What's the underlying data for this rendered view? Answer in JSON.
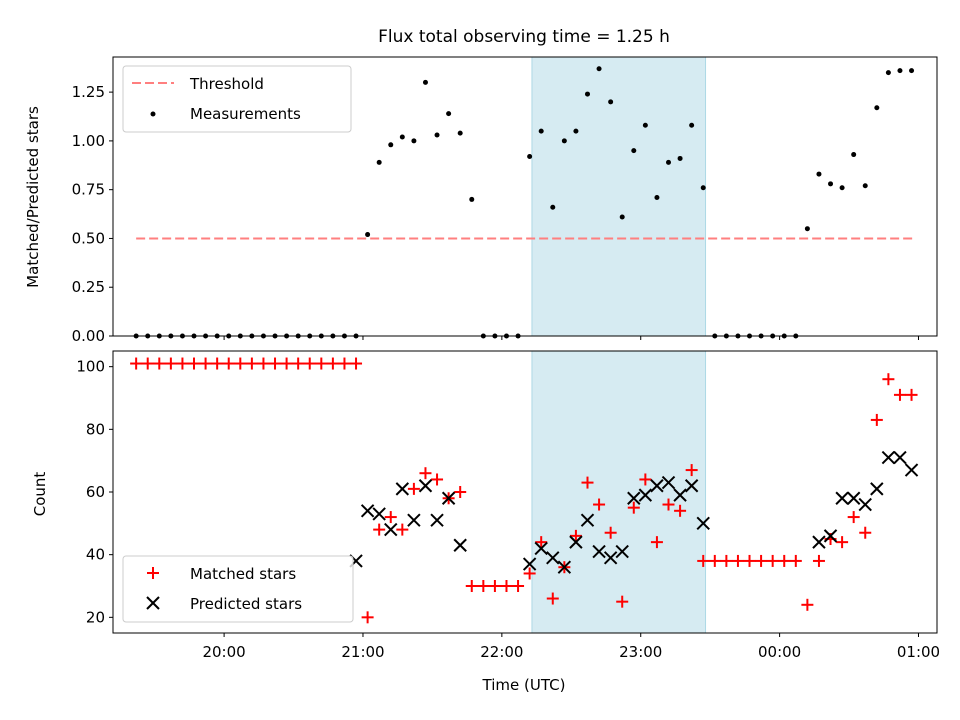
{
  "title": "Flux total observing time = 1.25 h",
  "colors": {
    "threshold": "#ff7f7f",
    "measurement": "#000000",
    "matched": "#ff0000",
    "predicted": "#000000",
    "shade_fill": "#add8e6"
  },
  "chart_data": [
    {
      "type": "scatter",
      "ylabel": "Matched/Predicted stars",
      "xlim": [
        "19:12",
        "01:08"
      ],
      "ylim": [
        0,
        1.43
      ],
      "yticks": [
        "0.00",
        "0.25",
        "0.50",
        "0.75",
        "1.00",
        "1.25"
      ],
      "shaded_interval": {
        "start": "22:13",
        "end": "23:28"
      },
      "legend": {
        "position": "upper-left",
        "entries": [
          "Threshold",
          "Measurements"
        ]
      },
      "threshold": {
        "name": "Threshold",
        "y": 0.5,
        "x_range": [
          "19:22",
          "00:58"
        ]
      },
      "measurements": {
        "name": "Measurements",
        "x": [
          "19:22",
          "19:27",
          "19:32",
          "19:37",
          "19:42",
          "19:47",
          "19:52",
          "19:57",
          "20:02",
          "20:07",
          "20:12",
          "20:17",
          "20:22",
          "20:27",
          "20:32",
          "20:37",
          "20:42",
          "20:47",
          "20:52",
          "20:57",
          "21:02",
          "21:07",
          "21:12",
          "21:17",
          "21:22",
          "21:27",
          "21:32",
          "21:37",
          "21:42",
          "21:47",
          "21:52",
          "21:57",
          "22:02",
          "22:07",
          "22:12",
          "22:17",
          "22:22",
          "22:27",
          "22:32",
          "22:37",
          "22:42",
          "22:47",
          "22:52",
          "22:57",
          "23:02",
          "23:07",
          "23:12",
          "23:17",
          "23:22",
          "23:27",
          "23:32",
          "23:37",
          "23:42",
          "23:47",
          "23:52",
          "23:57",
          "00:02",
          "00:07",
          "00:12",
          "00:17",
          "00:22",
          "00:27",
          "00:32",
          "00:37",
          "00:42",
          "00:47",
          "00:52",
          "00:57"
        ],
        "y": [
          0,
          0,
          0,
          0,
          0,
          0,
          0,
          0,
          0,
          0,
          0,
          0,
          0,
          0,
          0,
          0,
          0,
          0,
          0,
          0,
          0.52,
          0.89,
          0.98,
          1.02,
          1.0,
          1.3,
          1.03,
          1.14,
          1.04,
          0.7,
          0,
          0,
          0,
          0,
          0.92,
          1.05,
          0.66,
          1.0,
          1.05,
          1.24,
          1.37,
          1.2,
          0.61,
          0.95,
          1.08,
          0.71,
          0.89,
          0.91,
          1.08,
          0.76,
          0,
          0,
          0,
          0,
          0,
          0,
          0,
          0,
          0.55,
          0.83,
          0.78,
          0.76,
          0.93,
          0.77,
          1.17,
          1.35,
          1.36,
          1.36
        ],
        "missing_note": ""
      }
    },
    {
      "type": "scatter",
      "xlabel": "Time (UTC)",
      "ylabel": "Count",
      "xlim": [
        "19:12",
        "01:08"
      ],
      "ylim": [
        15,
        105
      ],
      "xticks": [
        "20:00",
        "21:00",
        "22:00",
        "23:00",
        "00:00",
        "01:00"
      ],
      "yticks": [
        "20",
        "40",
        "60",
        "80",
        "100"
      ],
      "shaded_interval": {
        "start": "22:13",
        "end": "23:28"
      },
      "legend": {
        "position": "lower-left",
        "entries": [
          "Matched stars",
          "Predicted stars"
        ]
      },
      "series": [
        {
          "name": "Matched stars",
          "marker": "plus",
          "x": [
            "19:22",
            "19:27",
            "19:32",
            "19:37",
            "19:42",
            "19:47",
            "19:52",
            "19:57",
            "20:02",
            "20:07",
            "20:12",
            "20:17",
            "20:22",
            "20:27",
            "20:32",
            "20:37",
            "20:42",
            "20:47",
            "20:52",
            "20:57",
            "21:02",
            "21:07",
            "21:12",
            "21:17",
            "21:22",
            "21:27",
            "21:32",
            "21:37",
            "21:42",
            "21:47",
            "21:52",
            "21:57",
            "22:02",
            "22:07",
            "22:12",
            "22:17",
            "22:22",
            "22:27",
            "22:32",
            "22:37",
            "22:42",
            "22:47",
            "22:52",
            "22:57",
            "23:02",
            "23:07",
            "23:12",
            "23:17",
            "23:22",
            "23:27",
            "23:32",
            "23:37",
            "23:42",
            "23:47",
            "23:52",
            "23:57",
            "00:02",
            "00:07",
            "00:12",
            "00:17",
            "00:22",
            "00:27",
            "00:32",
            "00:37",
            "00:42",
            "00:47",
            "00:52",
            "00:57"
          ],
          "y": [
            101,
            101,
            101,
            101,
            101,
            101,
            101,
            101,
            101,
            101,
            101,
            101,
            101,
            101,
            101,
            101,
            101,
            101,
            101,
            101,
            20,
            48,
            52,
            48,
            61,
            66,
            64,
            58,
            60,
            30,
            30,
            30,
            30,
            30,
            34,
            44,
            26,
            36,
            46,
            63,
            56,
            47,
            25,
            55,
            64,
            44,
            56,
            54,
            67,
            38,
            38,
            38,
            38,
            38,
            38,
            38,
            38,
            38,
            24,
            38,
            45,
            44,
            52,
            47,
            83,
            96,
            91,
            91
          ]
        },
        {
          "name": "Predicted stars",
          "marker": "x",
          "x": [
            "20:57",
            "21:02",
            "21:07",
            "21:12",
            "21:17",
            "21:22",
            "21:27",
            "21:32",
            "21:37",
            "21:42",
            "22:12",
            "22:17",
            "22:22",
            "22:27",
            "22:32",
            "22:37",
            "22:42",
            "22:47",
            "22:52",
            "22:57",
            "23:02",
            "23:07",
            "23:12",
            "23:17",
            "23:22",
            "23:27",
            "00:17",
            "00:22",
            "00:27",
            "00:32",
            "00:37",
            "00:42",
            "00:47",
            "00:52",
            "00:57"
          ],
          "y": [
            38,
            54,
            53,
            48,
            61,
            51,
            62,
            51,
            58,
            43,
            37,
            42,
            39,
            36,
            44,
            51,
            41,
            39,
            41,
            58,
            59,
            62,
            63,
            59,
            62,
            50,
            44,
            46,
            58,
            58,
            56,
            61,
            71,
            71,
            67
          ]
        }
      ]
    }
  ]
}
